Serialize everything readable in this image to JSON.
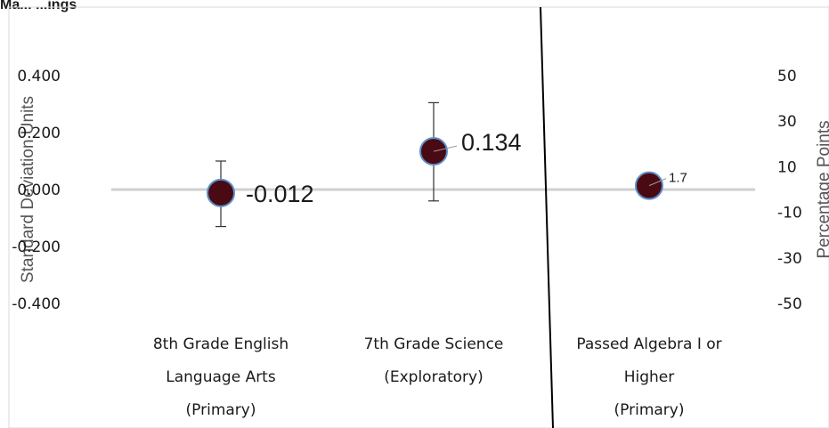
{
  "title_fragment": "Ma... ...ings",
  "chart_data": [
    {
      "type": "scatter",
      "ylabel": "Standard Deviation Units",
      "ylim": [
        -0.4,
        0.4
      ],
      "yticks": [
        "0.400",
        "0.200",
        "0.000",
        "-0.200",
        "-0.400"
      ],
      "categories": [
        "8th Grade English Language Arts (Primary)",
        "7th Grade Science (Exploratory)"
      ],
      "category_lines": [
        [
          "8th Grade English",
          "Language Arts",
          "(Primary)"
        ],
        [
          "7th Grade Science",
          "(Exploratory)"
        ]
      ],
      "values": [
        -0.012,
        0.134
      ],
      "data_labels": [
        "-0.012",
        "0.134"
      ],
      "error_low": [
        -0.13,
        -0.04
      ],
      "error_high": [
        0.1,
        0.305
      ]
    },
    {
      "type": "scatter",
      "ylabel": "Percentage Points",
      "ylim": [
        -50,
        50
      ],
      "yticks": [
        "50",
        "30",
        "10",
        "-10",
        "-30",
        "-50"
      ],
      "categories": [
        "Passed Algebra I or Higher (Primary)"
      ],
      "category_lines": [
        [
          "Passed Algebra I or",
          "Higher",
          "(Primary)"
        ]
      ],
      "values": [
        1.7
      ],
      "data_labels": [
        "1.7"
      ],
      "error_low": [
        -3.5
      ],
      "error_high": [
        6.5
      ]
    }
  ],
  "colors": {
    "marker_fill": "#4a0a14",
    "marker_stroke": "#5b8fc9",
    "zero_line": "#d0d0d0",
    "divider": "#000000",
    "frame": "#d9d9d9"
  }
}
